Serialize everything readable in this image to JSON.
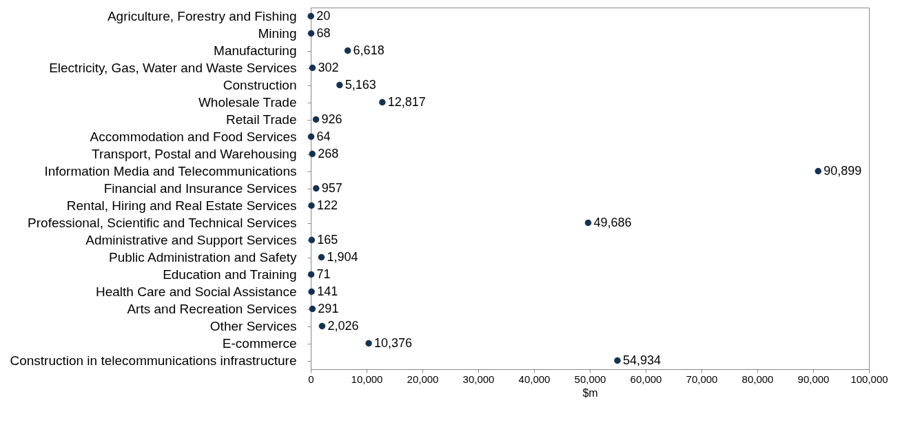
{
  "chart_data": {
    "type": "scatter",
    "orientation": "horizontal",
    "xlabel": "$m",
    "categories": [
      "Agriculture, Forestry and Fishing",
      "Mining",
      "Manufacturing",
      "Electricity, Gas, Water and Waste Services",
      "Construction",
      "Wholesale Trade",
      "Retail Trade",
      "Accommodation and Food Services",
      "Transport, Postal and Warehousing",
      "Information Media and Telecommunications",
      "Financial and Insurance Services",
      "Rental, Hiring and Real Estate Services",
      "Professional, Scientific and Technical Services",
      "Administrative and Support Services",
      "Public Administration and Safety",
      "Education and Training",
      "Health Care and Social Assistance",
      "Arts and Recreation Services",
      "Other Services",
      "E-commerce",
      "Construction in telecommunications infrastructure"
    ],
    "values": [
      20,
      68,
      6618,
      302,
      5163,
      12817,
      926,
      64,
      268,
      90899,
      957,
      122,
      49686,
      165,
      1904,
      71,
      141,
      291,
      2026,
      10376,
      54934
    ],
    "value_labels": [
      "20",
      "68",
      "6,618",
      "302",
      "5,163",
      "12,817",
      "926",
      "64",
      "268",
      "90,899",
      "957",
      "122",
      "49,686",
      "165",
      "1,904",
      "71",
      "141",
      "291",
      "2,026",
      "10,376",
      "54,934"
    ],
    "color": "#17324f",
    "marker": "circle",
    "grid": false,
    "xlim": [
      0,
      100000
    ],
    "xticks": [
      0,
      {
        "value": 10000,
        "label": "10,000"
      },
      {
        "value": 20000,
        "label": "20,000"
      },
      {
        "value": 30000,
        "label": "30,000"
      },
      {
        "value": 40000,
        "label": "40,000"
      },
      {
        "value": 50000,
        "label": "50,000"
      },
      {
        "value": 60000,
        "label": "60,000"
      },
      {
        "value": 70000,
        "label": "70,000"
      },
      {
        "value": 80000,
        "label": "80,000"
      },
      {
        "value": 90000,
        "label": "90,000"
      },
      {
        "value": 100000,
        "label": "100,000"
      }
    ]
  }
}
